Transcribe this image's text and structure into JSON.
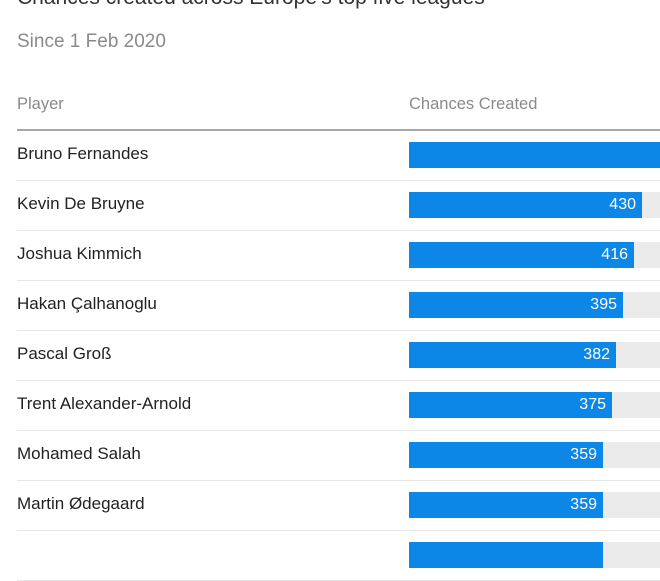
{
  "title": "Chances created across Europe’s top five leagues",
  "subtitle": "Since 1 Feb 2020",
  "columns": {
    "player": "Player",
    "value": "Chances Created"
  },
  "colors": {
    "bar": "#0c87e8",
    "track": "#ebebeb",
    "rule": "#a8a8a8"
  },
  "chart_data": {
    "type": "bar",
    "orientation": "horizontal",
    "title": "Chances created across Europe’s top five leagues",
    "subtitle": "Since 1 Feb 2020",
    "xlabel": "Chances Created",
    "ylabel": "Player",
    "xlim": [
      0,
      464
    ],
    "categories": [
      "Bruno Fernandes",
      "Kevin De Bruyne",
      "Joshua Kimmich",
      "Hakan Çalhanoglu",
      "Pascal Groß",
      "Trent Alexander-Arnold",
      "Mohamed Salah",
      "Martin Ødegaard",
      ""
    ],
    "values": [
      464,
      430,
      416,
      395,
      382,
      375,
      359,
      359,
      359
    ],
    "value_labels": [
      "",
      "430",
      "416",
      "395",
      "382",
      "375",
      "359",
      "359",
      ""
    ]
  }
}
